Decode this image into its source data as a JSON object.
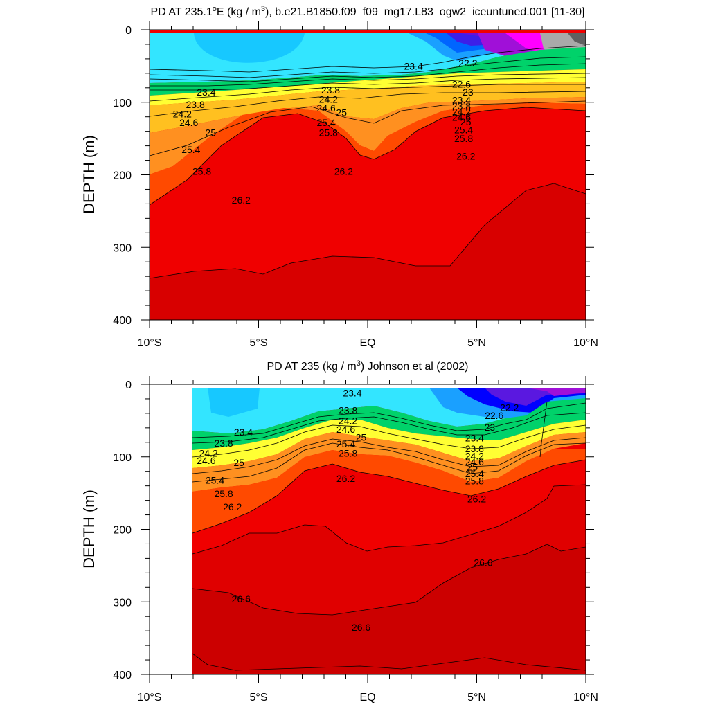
{
  "chart_data": [
    {
      "type": "contour",
      "title_prefix": "PD AT 235.1",
      "title_degree": "o",
      "title_mid": "E (kg / m",
      "title_exp": "3",
      "title_suffix": "), b.e21.B1850.f09_f09_mg17.L83_ogw2_iceuntuned.001 [11-30]",
      "ylabel": "DEPTH (m)",
      "ylim": [
        0,
        400
      ],
      "xlim": [
        -10,
        10
      ],
      "yticks": [
        "0",
        "100",
        "200",
        "300",
        "400"
      ],
      "xticks": [
        "10°S",
        "5°S",
        "EQ",
        "5°N",
        "10°N"
      ],
      "contour_labels": [
        {
          "text": "23.4",
          "lat": 2.1,
          "depth": 50
        },
        {
          "text": "23.4",
          "lat": -7.4,
          "depth": 86
        },
        {
          "text": "23.8",
          "lat": -7.9,
          "depth": 103
        },
        {
          "text": "24.2",
          "lat": -8.5,
          "depth": 116
        },
        {
          "text": "24.6",
          "lat": -8.2,
          "depth": 128
        },
        {
          "text": "25",
          "lat": -7.2,
          "depth": 142
        },
        {
          "text": "25.4",
          "lat": -8.1,
          "depth": 165
        },
        {
          "text": "25.8",
          "lat": -7.6,
          "depth": 195
        },
        {
          "text": "26.2",
          "lat": -5.8,
          "depth": 235
        },
        {
          "text": "23.8",
          "lat": -1.7,
          "depth": 83
        },
        {
          "text": "24.2",
          "lat": -1.8,
          "depth": 96
        },
        {
          "text": "24.6",
          "lat": -1.9,
          "depth": 108
        },
        {
          "text": "25",
          "lat": -1.2,
          "depth": 114
        },
        {
          "text": "25.4",
          "lat": -1.9,
          "depth": 128
        },
        {
          "text": "25.8",
          "lat": -1.8,
          "depth": 142
        },
        {
          "text": "26.2",
          "lat": -1.1,
          "depth": 195
        },
        {
          "text": "22.2",
          "lat": 4.6,
          "depth": 46
        },
        {
          "text": "22.6",
          "lat": 4.3,
          "depth": 75
        },
        {
          "text": "23",
          "lat": 4.6,
          "depth": 86
        },
        {
          "text": "23.4",
          "lat": 4.3,
          "depth": 97
        },
        {
          "text": "23.8",
          "lat": 4.3,
          "depth": 105
        },
        {
          "text": "24.2",
          "lat": 4.3,
          "depth": 113
        },
        {
          "text": "24.6",
          "lat": 4.3,
          "depth": 121
        },
        {
          "text": "25",
          "lat": 4.5,
          "depth": 127
        },
        {
          "text": "25.4",
          "lat": 4.4,
          "depth": 138
        },
        {
          "text": "25.8",
          "lat": 4.4,
          "depth": 150
        },
        {
          "text": "26.2",
          "lat": 4.5,
          "depth": 174
        }
      ]
    },
    {
      "type": "contour",
      "title": "PD AT 235 (kg / m",
      "title_exp": "3",
      "title_suffix": ") Johnson et al (2002)",
      "ylabel": "DEPTH (m)",
      "ylim": [
        0,
        400
      ],
      "xlim": [
        -10,
        10
      ],
      "yticks": [
        "0",
        "100",
        "200",
        "300",
        "400"
      ],
      "xticks": [
        "10°S",
        "5°S",
        "EQ",
        "5°N",
        "10°N"
      ],
      "contour_labels": [
        {
          "text": "23.4",
          "lat": -0.7,
          "depth": 12
        },
        {
          "text": "23.8",
          "lat": -0.9,
          "depth": 36
        },
        {
          "text": "24.2",
          "lat": -0.9,
          "depth": 50
        },
        {
          "text": "24.6",
          "lat": -1.0,
          "depth": 62
        },
        {
          "text": "25",
          "lat": -0.3,
          "depth": 73
        },
        {
          "text": "25.4",
          "lat": -1.0,
          "depth": 82
        },
        {
          "text": "25.8",
          "lat": -0.9,
          "depth": 95
        },
        {
          "text": "26.2",
          "lat": -1.0,
          "depth": 130
        },
        {
          "text": "23.4",
          "lat": -5.7,
          "depth": 66
        },
        {
          "text": "23.8",
          "lat": -6.6,
          "depth": 81
        },
        {
          "text": "24.2",
          "lat": -7.3,
          "depth": 95
        },
        {
          "text": "24.6",
          "lat": -7.4,
          "depth": 105
        },
        {
          "text": "25",
          "lat": -5.9,
          "depth": 108
        },
        {
          "text": "25.4",
          "lat": -7.0,
          "depth": 132
        },
        {
          "text": "25.8",
          "lat": -6.6,
          "depth": 151
        },
        {
          "text": "26.2",
          "lat": -6.2,
          "depth": 169
        },
        {
          "text": "22.2",
          "lat": 6.5,
          "depth": 32
        },
        {
          "text": "22.6",
          "lat": 5.8,
          "depth": 43
        },
        {
          "text": "23",
          "lat": 5.6,
          "depth": 59
        },
        {
          "text": "23.4",
          "lat": 4.9,
          "depth": 74
        },
        {
          "text": "23.8",
          "lat": 4.9,
          "depth": 89
        },
        {
          "text": "24.2",
          "lat": 4.9,
          "depth": 99
        },
        {
          "text": "24.6",
          "lat": 4.9,
          "depth": 107
        },
        {
          "text": "25",
          "lat": 4.8,
          "depth": 114
        },
        {
          "text": "25.4",
          "lat": 4.9,
          "depth": 123
        },
        {
          "text": "25.8",
          "lat": 4.9,
          "depth": 133
        },
        {
          "text": "26.2",
          "lat": 5.0,
          "depth": 158
        },
        {
          "text": "26.6",
          "lat": 5.3,
          "depth": 246
        },
        {
          "text": "26.6",
          "lat": -5.8,
          "depth": 296
        },
        {
          "text": "26.6",
          "lat": -0.3,
          "depth": 335
        }
      ]
    }
  ]
}
